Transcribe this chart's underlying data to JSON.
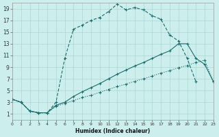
{
  "xlabel": "Humidex (Indice chaleur)",
  "bg_color": "#cceeed",
  "line_color": "#1a6b6b",
  "grid_color": "#aed6d4",
  "xlim": [
    0,
    23
  ],
  "ylim": [
    0,
    20
  ],
  "xticks": [
    0,
    1,
    2,
    3,
    4,
    5,
    6,
    7,
    8,
    9,
    10,
    11,
    12,
    13,
    14,
    15,
    16,
    17,
    18,
    19,
    20,
    21,
    22,
    23
  ],
  "yticks": [
    1,
    3,
    5,
    7,
    9,
    11,
    13,
    15,
    17,
    19
  ],
  "curve_dashed_x": [
    0,
    1,
    2,
    3,
    4,
    5,
    6,
    7,
    8,
    9,
    10,
    11,
    12,
    13,
    14,
    15,
    16,
    17,
    18,
    19,
    20,
    21
  ],
  "curve_dashed_y": [
    3.5,
    3.0,
    1.5,
    1.2,
    1.2,
    3.0,
    10.5,
    15.5,
    16.2,
    17.0,
    17.5,
    18.5,
    19.8,
    18.8,
    19.2,
    18.8,
    17.8,
    17.2,
    14.5,
    13.5,
    10.5,
    6.5
  ],
  "curve_solid_x": [
    0,
    1,
    2,
    3,
    4,
    5,
    6,
    7,
    8,
    9,
    10,
    11,
    12,
    13,
    14,
    15,
    16,
    17,
    18,
    19,
    20,
    21,
    22,
    23
  ],
  "curve_solid_y": [
    3.5,
    3.0,
    1.5,
    1.2,
    1.2,
    2.5,
    3.0,
    4.0,
    4.8,
    5.5,
    6.2,
    7.0,
    7.8,
    8.5,
    9.2,
    9.8,
    10.5,
    11.2,
    11.8,
    13.0,
    13.0,
    10.5,
    9.5,
    6.5
  ],
  "curve_dotted_x": [
    0,
    1,
    2,
    3,
    4,
    5,
    6,
    7,
    8,
    9,
    10,
    11,
    12,
    13,
    14,
    15,
    16,
    17,
    18,
    19,
    20,
    21,
    22,
    23
  ],
  "curve_dotted_y": [
    3.5,
    3.0,
    1.5,
    1.2,
    1.2,
    2.3,
    2.8,
    3.3,
    3.8,
    4.2,
    4.7,
    5.2,
    5.7,
    6.1,
    6.6,
    7.0,
    7.5,
    8.0,
    8.4,
    8.9,
    9.3,
    9.8,
    10.2,
    6.5
  ]
}
